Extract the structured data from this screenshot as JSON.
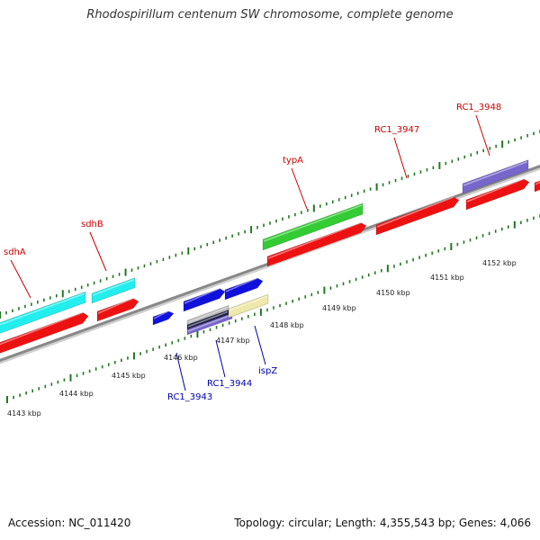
{
  "title": "Rhodospirillum centenum SW chromosome, complete genome",
  "footer": {
    "accession": "Accession: NC_011420",
    "summary": "Topology: circular; Length: 4,355,543 bp; Genes: 4,066"
  },
  "colors": {
    "backbone": "#888888",
    "tick": "#227722",
    "kbp_label": "#222222",
    "label_red": "#cc0000",
    "label_blue": "#0000aa",
    "red": "#ee1111",
    "cyan": "#22eeee",
    "green": "#33cc33",
    "blue": "#1111dd",
    "purple": "#7766cc",
    "yellow": "#eee8aa",
    "navy": "#22224a",
    "grey": "#b8b8b8"
  },
  "kbp_labels": [
    "4143 kbp",
    "4144 kbp",
    "4145 kbp",
    "4146 kbp",
    "4147 kbp",
    "4148 kbp",
    "4149 kbp",
    "4150 kbp",
    "4151 kbp",
    "4152 kbp"
  ],
  "gene_labels_top": [
    "sdhA",
    "sdhB",
    "typA",
    "RC1_3947",
    "RC1_3948"
  ],
  "gene_labels_bottom": [
    "RC1_3943",
    "RC1_3944",
    "ispZ"
  ]
}
